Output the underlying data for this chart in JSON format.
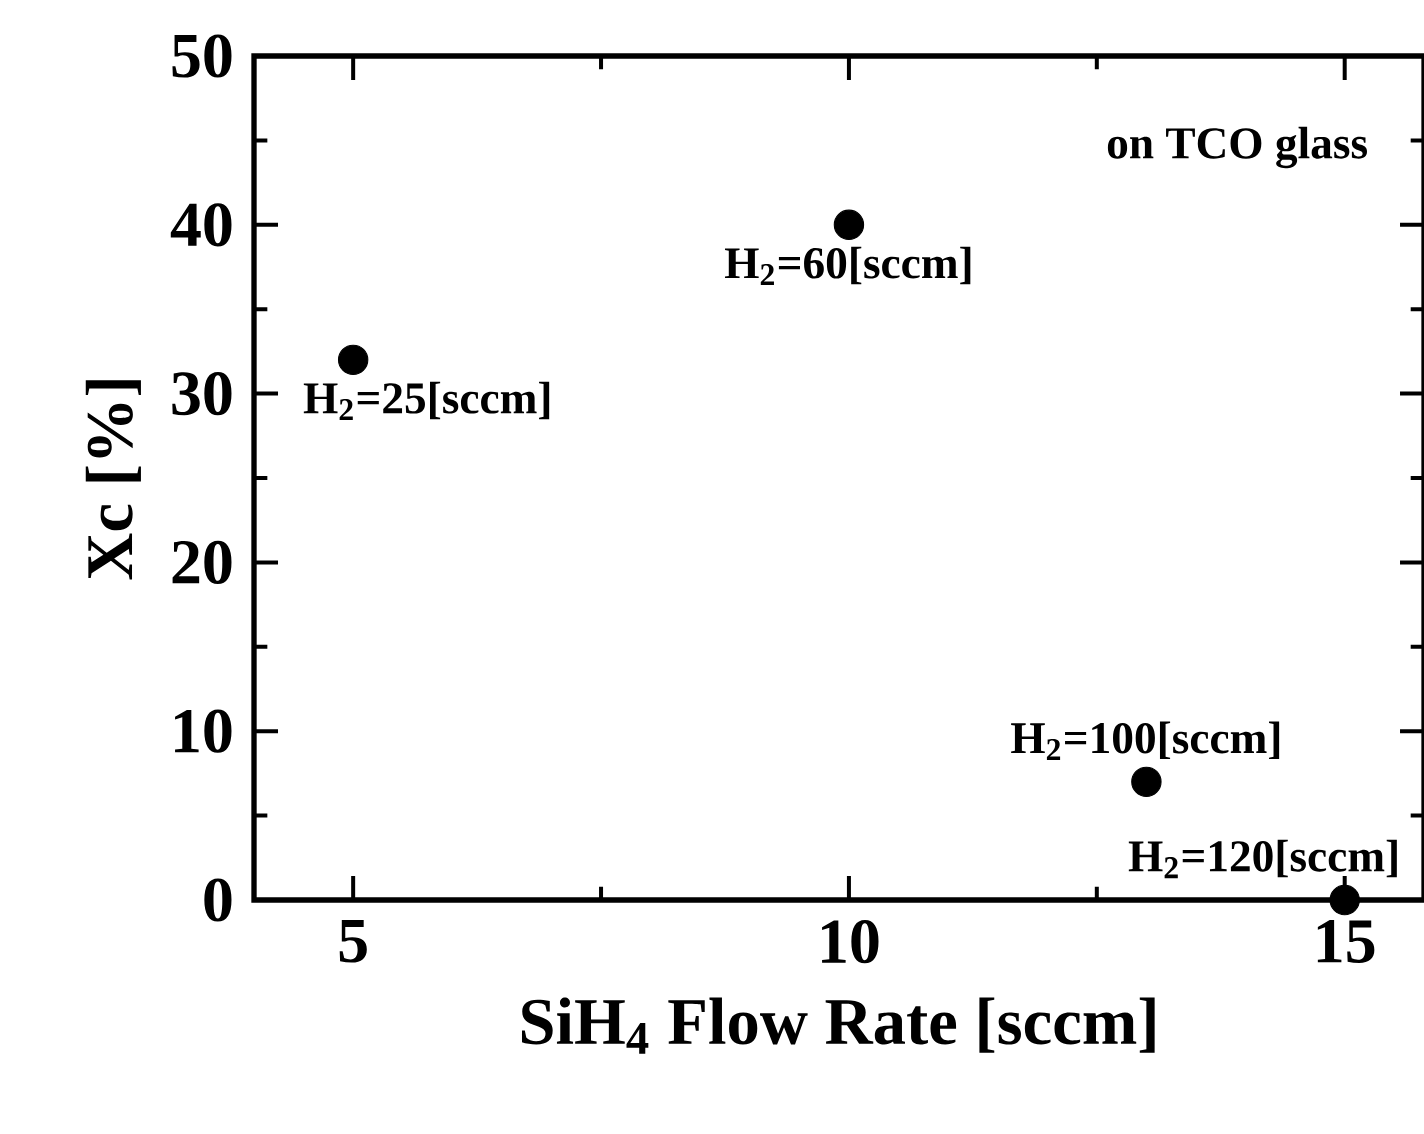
{
  "chart_data": {
    "type": "scatter",
    "xlabel": "SiH$_{4}$ Flow Rate [sccm]",
    "ylabel": "Xc [%]",
    "x": [
      5,
      10,
      13,
      15
    ],
    "values": [
      32,
      40,
      7,
      0
    ],
    "color": "#000000",
    "xlim": [
      4,
      15.8
    ],
    "ylim": [
      0,
      50
    ],
    "xticks": [
      5,
      10,
      15
    ],
    "yticks": [
      0,
      10,
      20,
      30,
      40,
      50
    ],
    "grid": false,
    "annotations": [
      "on TCO glass",
      {
        "text": "H$_{2}$=25[sccm]",
        "x": 5,
        "y": 32
      },
      {
        "text": "H$_{2}$=60[sccm]",
        "x": 10,
        "y": 40
      },
      {
        "text": "H$_{2}$=100[sccm]",
        "x": 13,
        "y": 7
      },
      {
        "text": "H$_{2}$=120[sccm]",
        "x": 15,
        "y": 0
      }
    ]
  }
}
